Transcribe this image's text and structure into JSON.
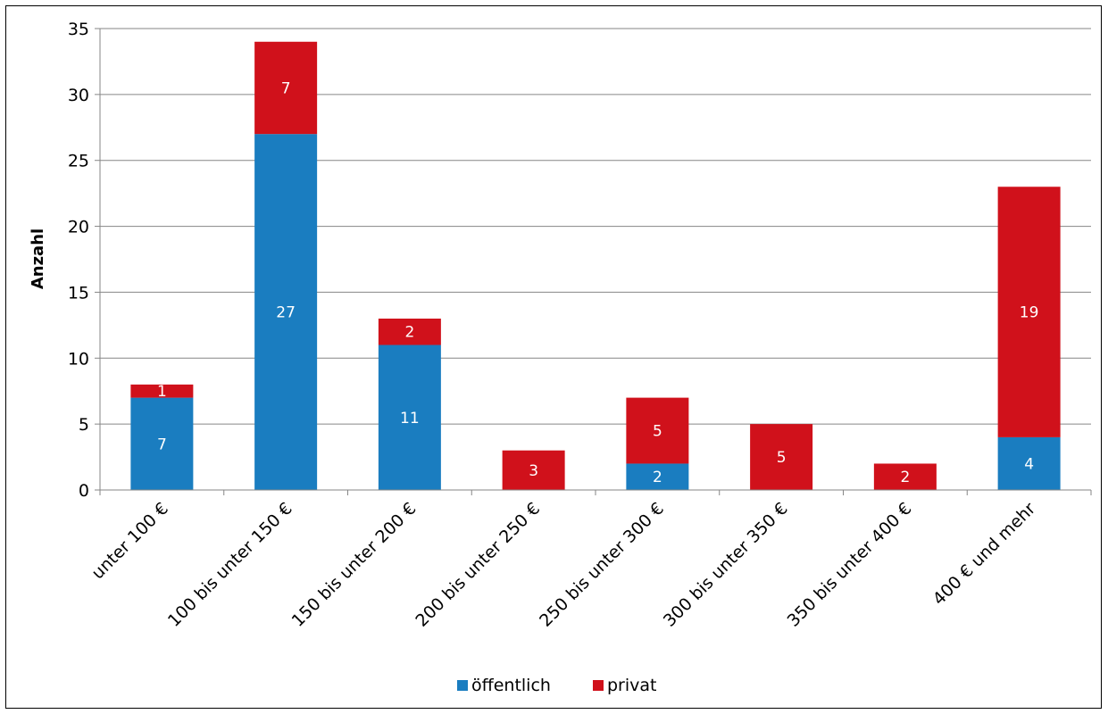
{
  "chart_data": {
    "type": "bar",
    "stacked": true,
    "title": "",
    "xlabel": "",
    "ylabel": "Anzahl",
    "ylim": [
      0,
      35
    ],
    "yticks": [
      0,
      5,
      10,
      15,
      20,
      25,
      30,
      35
    ],
    "grid": true,
    "legend_position": "bottom",
    "categories": [
      "unter 100 €",
      "100 bis unter 150 €",
      "150 bis unter 200 €",
      "200 bis unter 250 €",
      "250 bis unter 300 €",
      "300 bis unter 350 €",
      "350 bis unter 400 €",
      "400 € und mehr"
    ],
    "series": [
      {
        "name": "öffentlich",
        "color": "#1a7dc0",
        "values": [
          7,
          27,
          11,
          0,
          2,
          0,
          0,
          4
        ]
      },
      {
        "name": "privat",
        "color": "#d0111b",
        "values": [
          1,
          7,
          2,
          3,
          5,
          5,
          2,
          19
        ]
      }
    ]
  }
}
